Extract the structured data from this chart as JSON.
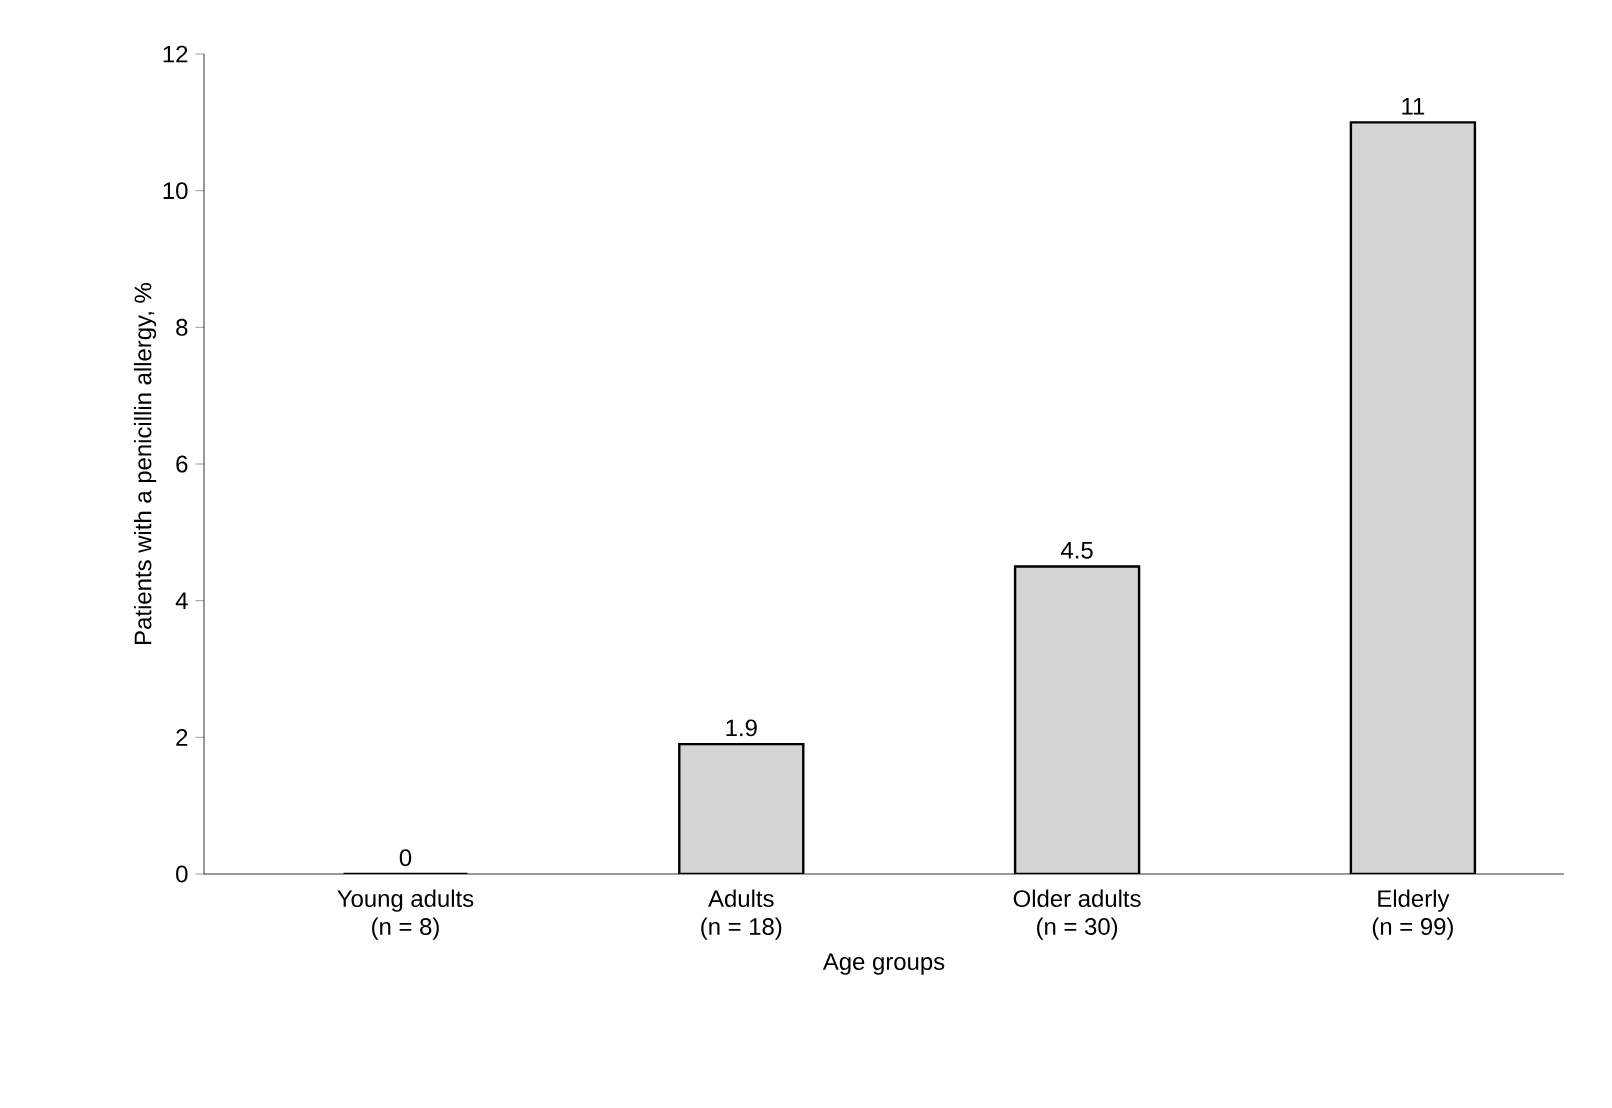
{
  "chart_data": {
    "type": "bar",
    "xlabel": "Age groups",
    "ylabel": "Patients with a penicillin allergy, %",
    "categories": [
      "Young adults\n(n = 8)",
      "Adults\n(n = 18)",
      "Older adults\n(n = 30)",
      "Elderly\n(n = 99)"
    ],
    "values": [
      0,
      1.9,
      4.5,
      11
    ],
    "color": "#d4d4d4",
    "data_labels": true,
    "ylim": [
      0,
      12
    ],
    "yticks": [
      0,
      2,
      4,
      6,
      8,
      10,
      12
    ]
  }
}
